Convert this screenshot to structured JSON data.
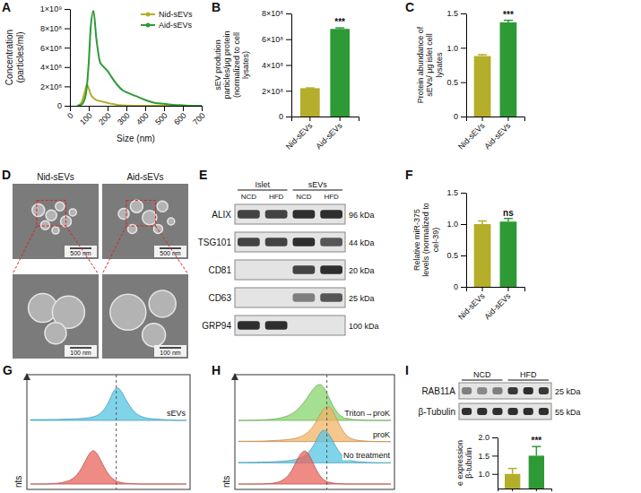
{
  "chart_data": [
    {
      "panel": "A",
      "type": "line",
      "x_label": "Size (nm)",
      "y_label": "Concentration (particles/ml)",
      "x": [
        40,
        60,
        80,
        90,
        100,
        110,
        125,
        140,
        160,
        180,
        200,
        220,
        250,
        280,
        300,
        350,
        400,
        450,
        500,
        550,
        600,
        650,
        700
      ],
      "series": [
        {
          "name": "Nid-sEVs",
          "color": "#b5ae2a",
          "values": [
            0,
            30000000,
            150000000,
            220000000,
            180000000,
            120000000,
            80000000,
            60000000,
            50000000,
            40000000,
            30000000,
            20000000,
            10000000,
            5000000,
            3000000,
            0,
            0,
            0,
            0,
            0,
            0,
            0,
            0
          ]
        },
        {
          "name": "Aid-sEVs",
          "color": "#2e9a35",
          "values": [
            0,
            10000000,
            80000000,
            200000000,
            450000000,
            800000000,
            980000000,
            700000000,
            450000000,
            400000000,
            360000000,
            300000000,
            220000000,
            160000000,
            140000000,
            100000000,
            60000000,
            30000000,
            20000000,
            10000000,
            5000000,
            0,
            0
          ]
        }
      ],
      "xlim": [
        0,
        700
      ],
      "xticks": [
        0,
        100,
        200,
        300,
        400,
        500,
        600,
        700
      ],
      "ylim": [
        0,
        1000000000
      ],
      "yticks": [
        0,
        {
          "value": 200000000,
          "label": "2×10⁸"
        },
        {
          "value": 400000000,
          "label": "4×10⁸"
        },
        {
          "value": 600000000,
          "label": "6×10⁸"
        },
        {
          "value": 800000000,
          "label": "8×10⁸"
        },
        {
          "value": 1000000000,
          "label": "1×10⁹"
        }
      ],
      "legend": "top-right",
      "marker": "circle"
    },
    {
      "panel": "B",
      "type": "bar",
      "y_label": "sEV prodution particles/μg protein (normalized to cell lysates)",
      "categories": [
        "Nid-sEVs",
        "Aid-sEVs"
      ],
      "values": [
        220000000,
        680000000
      ],
      "errors": [
        2000000,
        8000000
      ],
      "colors": [
        "#b5ae2a",
        "#2e9a35"
      ],
      "significance": [
        null,
        "***"
      ],
      "ylim": [
        0,
        800000000
      ],
      "yticks": [
        0,
        {
          "value": 200000000,
          "label": "2×10⁸"
        },
        {
          "value": 400000000,
          "label": "4×10⁸"
        },
        {
          "value": 600000000,
          "label": "6×10⁸"
        },
        {
          "value": 800000000,
          "label": "8×10⁸"
        }
      ]
    },
    {
      "panel": "C",
      "type": "bar",
      "y_label": "Protein abundance of sEVs/ μg islet cell lysates",
      "categories": [
        "Nid-sEVs",
        "Aid-sEVs"
      ],
      "values": [
        0.88,
        1.37
      ],
      "errors": [
        0.02,
        0.03
      ],
      "colors": [
        "#b5ae2a",
        "#2e9a35"
      ],
      "significance": [
        null,
        "***"
      ],
      "ylim": [
        0,
        1.5
      ],
      "yticks": [
        0,
        0.5,
        {
          "value": 1,
          "label": "1.0"
        },
        1.5
      ]
    },
    {
      "panel": "D",
      "type": "image",
      "titles": [
        "Nid-sEVs",
        "Aid-sEVs"
      ],
      "scale_bars": [
        "500 nm",
        "500 nm",
        "100 nm",
        "100 nm"
      ]
    },
    {
      "panel": "E",
      "type": "blot",
      "groups": [
        "Islet",
        "sEVs"
      ],
      "lanes": [
        "NCD",
        "HFD",
        "NCD",
        "HFD"
      ],
      "rows": [
        {
          "name": "ALIX",
          "size": "96 kDa",
          "bands": [
            0.8,
            0.8,
            0.9,
            0.9
          ]
        },
        {
          "name": "TSG101",
          "size": "44 kDa",
          "bands": [
            0.8,
            0.8,
            0.9,
            0.7
          ]
        },
        {
          "name": "CD81",
          "size": "20 kDa",
          "bands": [
            0,
            0,
            0.8,
            0.9
          ]
        },
        {
          "name": "CD63",
          "size": "25 kDa",
          "bands": [
            0,
            0,
            0.5,
            0.7
          ]
        },
        {
          "name": "GRP94",
          "size": "100 kDa",
          "bands": [
            0.9,
            0.9,
            0,
            0
          ]
        }
      ]
    },
    {
      "panel": "F",
      "type": "bar",
      "y_label": "Relative miR-375 levels (normalized to cel-39)",
      "categories": [
        "Nid-sEVs",
        "Aid-sEVs"
      ],
      "values": [
        1.0,
        1.04
      ],
      "errors": [
        0.05,
        0.05
      ],
      "colors": [
        "#b5ae2a",
        "#2e9a35"
      ],
      "significance": [
        null,
        "ns"
      ],
      "ylim": [
        0,
        1.5
      ],
      "yticks": [
        0,
        0.5,
        {
          "value": 1,
          "label": "1.0"
        },
        1.5
      ]
    },
    {
      "panel": "G",
      "type": "density",
      "y_label": "nts",
      "tick_labels": false,
      "x": [
        0,
        5,
        10,
        15,
        20,
        25,
        30,
        35,
        40,
        45,
        50,
        55,
        60,
        65,
        70,
        75,
        80,
        85,
        90,
        95,
        100
      ],
      "xlim": [
        0,
        100
      ],
      "ylim": [
        0,
        100
      ],
      "reference_x": 55,
      "series": [
        {
          "color": "#e8645c",
          "values": [
            0,
            0,
            0,
            1,
            3,
            8,
            20,
            55,
            95,
            60,
            20,
            6,
            2,
            1,
            0,
            0,
            0,
            0,
            0,
            0,
            0
          ]
        },
        {
          "name": "sEVs",
          "color": "#56c6e3",
          "values": [
            2,
            2,
            2,
            2,
            3,
            3,
            4,
            5,
            8,
            15,
            40,
            95,
            60,
            25,
            10,
            5,
            3,
            2,
            1,
            0,
            0
          ]
        }
      ]
    },
    {
      "panel": "H",
      "type": "density",
      "y_label": "nts",
      "tick_labels": false,
      "x": [
        0,
        5,
        10,
        15,
        20,
        25,
        30,
        35,
        40,
        45,
        50,
        55,
        60,
        65,
        70,
        75,
        80,
        85,
        90,
        95,
        100
      ],
      "xlim": [
        0,
        100
      ],
      "ylim": [
        0,
        100
      ],
      "reference_x": 58,
      "series": [
        {
          "color": "#e8645c",
          "values": [
            0,
            0,
            0,
            0,
            1,
            3,
            10,
            30,
            75,
            90,
            40,
            10,
            3,
            1,
            0,
            0,
            0,
            0,
            0,
            0,
            0
          ]
        },
        {
          "name": "No treatment",
          "color": "#56c6e3",
          "values": [
            1,
            1,
            1,
            2,
            2,
            3,
            4,
            6,
            10,
            20,
            45,
            90,
            70,
            30,
            10,
            4,
            2,
            1,
            0,
            0,
            0
          ]
        },
        {
          "name": "proK",
          "color": "#f2b467",
          "values": [
            1,
            1,
            1,
            1,
            2,
            3,
            4,
            6,
            10,
            20,
            40,
            80,
            95,
            50,
            15,
            5,
            2,
            1,
            0,
            0,
            0
          ]
        },
        {
          "name": "Triton→proK",
          "color": "#86d46e",
          "values": [
            0,
            0,
            0,
            1,
            2,
            4,
            8,
            15,
            30,
            55,
            85,
            95,
            50,
            15,
            5,
            2,
            1,
            0,
            0,
            0,
            0
          ]
        }
      ]
    },
    {
      "panel": "I",
      "type": "blot",
      "groups": [
        "NCD",
        "HFD"
      ],
      "rows": [
        {
          "name": "RAB11A",
          "size": "25 kDa",
          "bands": [
            0.5,
            0.45,
            0.5,
            0.85,
            0.9,
            0.85
          ]
        },
        {
          "name": "β-Tubulin",
          "size": "55 kDa",
          "bands": [
            0.9,
            0.9,
            0.9,
            0.9,
            0.9,
            0.9
          ]
        }
      ]
    },
    {
      "type": "bar",
      "y_label": "e expression β-tubulin",
      "categories": [
        null,
        null
      ],
      "values": [
        1.0,
        1.5
      ],
      "errors": [
        0.15,
        0.25
      ],
      "colors": [
        "#b5ae2a",
        "#2e9a35"
      ],
      "significance": [
        null,
        "***"
      ],
      "ylim": [
        0.6,
        2.0
      ],
      "yticks": [
        {
          "value": 1,
          "label": "1.0"
        },
        1.5,
        {
          "value": 2,
          "label": "2.0"
        }
      ]
    }
  ]
}
